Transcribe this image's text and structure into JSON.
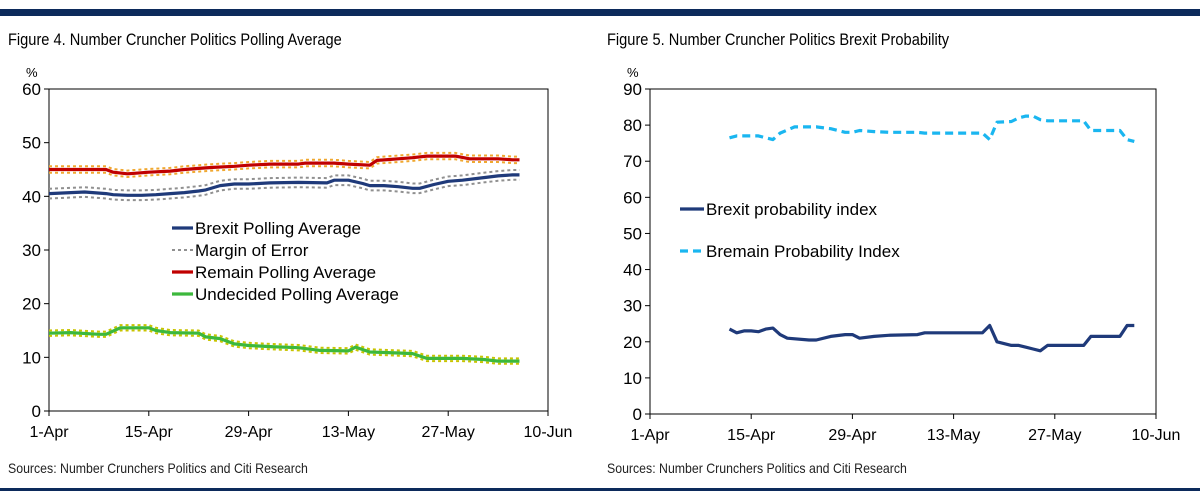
{
  "figure4": {
    "title": "Figure 4. Number Cruncher Politics Polling Average",
    "source": "Sources: Number Crunchers Politics and Citi Research",
    "chart_data": {
      "type": "line",
      "y_unit_label": "%",
      "ylim": [
        0,
        60
      ],
      "yticks": [
        0,
        10,
        20,
        30,
        40,
        50,
        60
      ],
      "x_tick_labels": [
        "1-Apr",
        "15-Apr",
        "29-Apr",
        "13-May",
        "27-May",
        "10-Jun"
      ],
      "x_tick_days": [
        0,
        14,
        28,
        42,
        56,
        70
      ],
      "grid": false,
      "legend_position": "center",
      "legend": [
        {
          "label": "Brexit Polling Average",
          "color": "#1f3a7a",
          "style": "solid"
        },
        {
          "label": "Margin of Error",
          "color": "#909090",
          "style": "dotted"
        },
        {
          "label": "Remain Polling Average",
          "color": "#c00000",
          "style": "solid"
        },
        {
          "label": "Undecided Polling Average",
          "color": "#3cb83c",
          "style": "solid"
        }
      ],
      "series": [
        {
          "name": "Remain Polling Average",
          "color": "#c00000",
          "band_color": "#f0a830",
          "x": [
            "1-Apr",
            "6-Apr",
            "9-Apr",
            "10-Apr",
            "12-Apr",
            "13-Apr",
            "15-Apr",
            "18-Apr",
            "20-Apr",
            "22-Apr",
            "24-Apr",
            "27-Apr",
            "29-Apr",
            "2-May",
            "6-May",
            "7-May",
            "9-May",
            "11-May",
            "13-May",
            "16-May",
            "17-May",
            "20-May",
            "22-May",
            "24-May",
            "26-May",
            "28-May",
            "30-May",
            "1-Jun",
            "3-Jun",
            "5-Jun",
            "6-Jun"
          ],
          "y": [
            45,
            45,
            45,
            44.5,
            44.2,
            44.3,
            44.5,
            44.7,
            45,
            45.2,
            45.4,
            45.6,
            45.8,
            46,
            46,
            46.2,
            46.2,
            46.2,
            46,
            45.8,
            46.7,
            47,
            47.2,
            47.5,
            47.5,
            47.5,
            47,
            47,
            47,
            46.8,
            46.8
          ],
          "band": 0.6
        },
        {
          "name": "Brexit Polling Average",
          "color": "#1f3a7a",
          "band_color": "#909090",
          "x": [
            "1-Apr",
            "6-Apr",
            "9-Apr",
            "10-Apr",
            "12-Apr",
            "14-Apr",
            "16-Apr",
            "18-Apr",
            "20-Apr",
            "22-Apr",
            "23-Apr",
            "25-Apr",
            "27-Apr",
            "29-Apr",
            "2-May",
            "6-May",
            "10-May",
            "11-May",
            "13-May",
            "15-May",
            "16-May",
            "18-May",
            "20-May",
            "22-May",
            "23-May",
            "25-May",
            "27-May",
            "29-May",
            "1-Jun",
            "3-Jun",
            "5-Jun",
            "6-Jun"
          ],
          "y": [
            40.5,
            40.8,
            40.5,
            40.3,
            40.2,
            40.2,
            40.3,
            40.5,
            40.7,
            41,
            41.2,
            42,
            42.3,
            42.3,
            42.5,
            42.6,
            42.5,
            43,
            43,
            42.4,
            42,
            42,
            41.8,
            41.5,
            41.5,
            42.2,
            42.8,
            43,
            43.5,
            43.8,
            44,
            44
          ],
          "band": 0.9
        },
        {
          "name": "Undecided Polling Average",
          "color": "#3cb83c",
          "band_color": "#c8c400",
          "x": [
            "1-Apr",
            "4-Apr",
            "8-Apr",
            "9-Apr",
            "11-Apr",
            "15-Apr",
            "16-Apr",
            "18-Apr",
            "22-Apr",
            "23-Apr",
            "25-Apr",
            "27-Apr",
            "29-Apr",
            "2-May",
            "6-May",
            "9-May",
            "13-May",
            "14-May",
            "16-May",
            "20-May",
            "22-May",
            "24-May",
            "27-May",
            "29-May",
            "1-Jun",
            "3-Jun",
            "6-Jun"
          ],
          "y": [
            14.5,
            14.6,
            14.3,
            14.3,
            15.5,
            15.5,
            15,
            14.6,
            14.5,
            13.8,
            13.5,
            12.5,
            12.2,
            12,
            11.8,
            11.3,
            11.2,
            11.9,
            11,
            10.8,
            10.7,
            9.8,
            9.8,
            9.8,
            9.6,
            9.3,
            9.3
          ],
          "band": 0.5
        }
      ]
    }
  },
  "figure5": {
    "title": "Figure 5. Number Cruncher Politics Brexit Probability",
    "source": "Sources: Number Crunchers Politics and Citi Research",
    "chart_data": {
      "type": "line",
      "y_unit_label": "%",
      "ylim": [
        0,
        90
      ],
      "yticks": [
        0,
        10,
        20,
        30,
        40,
        50,
        60,
        70,
        80,
        90
      ],
      "x_tick_labels": [
        "1-Apr",
        "15-Apr",
        "29-Apr",
        "13-May",
        "27-May",
        "10-Jun"
      ],
      "x_tick_days": [
        0,
        14,
        28,
        42,
        56,
        70
      ],
      "grid": false,
      "legend_position": "center-left",
      "series": [
        {
          "name": "Brexit probability index",
          "color": "#1f3a7a",
          "style": "solid",
          "x": [
            "12-Apr",
            "13-Apr",
            "14-Apr",
            "15-Apr",
            "16-Apr",
            "17-Apr",
            "18-Apr",
            "19-Apr",
            "20-Apr",
            "23-Apr",
            "24-Apr",
            "26-Apr",
            "28-Apr",
            "29-Apr",
            "30-Apr",
            "2-May",
            "4-May",
            "8-May",
            "9-May",
            "12-May",
            "14-May",
            "17-May",
            "18-May",
            "19-May",
            "21-May",
            "22-May",
            "23-May",
            "24-May",
            "25-May",
            "26-May",
            "28-May",
            "30-May",
            "31-May",
            "1-Jun",
            "3-Jun",
            "5-Jun",
            "6-Jun",
            "7-Jun"
          ],
          "y": [
            23.5,
            22.5,
            23,
            23,
            22.8,
            23.5,
            23.8,
            22,
            21,
            20.5,
            20.5,
            21.5,
            22,
            22,
            21,
            21.5,
            21.8,
            22,
            22.5,
            22.5,
            22.5,
            22.5,
            24.5,
            20,
            19,
            19,
            18.5,
            18,
            17.5,
            19,
            19,
            19,
            19,
            21.5,
            21.5,
            21.5,
            24.5,
            24.5
          ]
        },
        {
          "name": "Bremain Probability Index",
          "color": "#1ab6f0",
          "style": "dashed",
          "x": [
            "12-Apr",
            "13-Apr",
            "15-Apr",
            "16-Apr",
            "17-Apr",
            "18-Apr",
            "19-Apr",
            "21-Apr",
            "24-Apr",
            "26-Apr",
            "28-Apr",
            "29-Apr",
            "30-Apr",
            "2-May",
            "4-May",
            "8-May",
            "9-May",
            "12-May",
            "14-May",
            "17-May",
            "18-May",
            "19-May",
            "21-May",
            "22-May",
            "23-May",
            "24-May",
            "25-May",
            "26-May",
            "28-May",
            "30-May",
            "31-May",
            "1-Jun",
            "3-Jun",
            "5-Jun",
            "6-Jun",
            "7-Jun"
          ],
          "y": [
            76.5,
            77,
            77,
            77,
            76.5,
            76,
            77.8,
            79.5,
            79.5,
            79,
            78,
            78,
            78.5,
            78.2,
            78,
            78,
            77.8,
            77.8,
            77.8,
            77.8,
            76,
            80.8,
            81,
            82,
            82.5,
            82.5,
            81.5,
            81.2,
            81.2,
            81.2,
            81.2,
            78.5,
            78.5,
            78.5,
            76,
            75.5
          ]
        }
      ]
    }
  }
}
